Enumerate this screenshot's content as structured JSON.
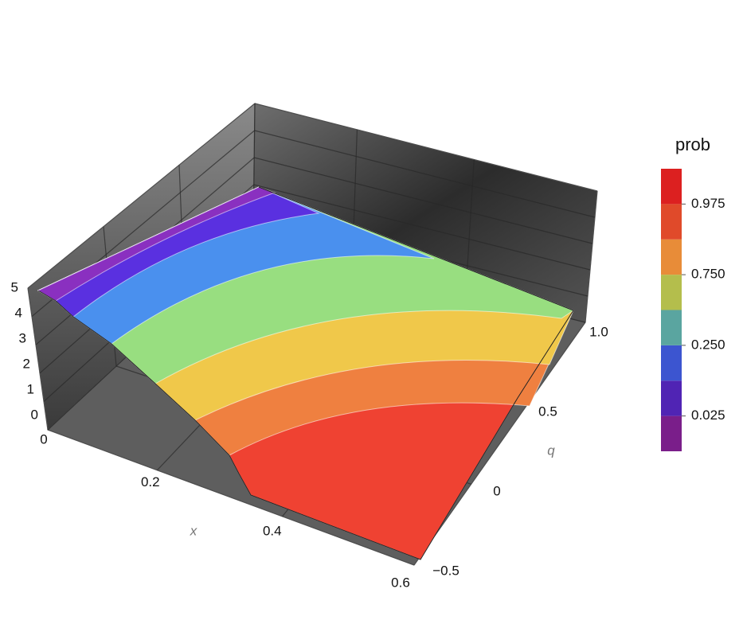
{
  "chart_data": {
    "type": "surface",
    "x_label": "x",
    "y_label": "q",
    "xlim": [
      0,
      0.6
    ],
    "xticks": [
      0,
      0.2,
      0.4,
      0.6
    ],
    "ylim": [
      -0.5,
      1
    ],
    "yticks": [
      {
        "value": -0.5,
        "label": "−0.5"
      },
      0,
      0.5,
      {
        "value": 1,
        "label": "1.0"
      }
    ],
    "zlim": [
      0,
      5
    ],
    "zticks": [
      0,
      1,
      2,
      3,
      4,
      5
    ],
    "colorbar": {
      "title": "prob",
      "colors": [
        "#7a1e8a",
        "#5024b4",
        "#3c55d0",
        "#5aa5a0",
        "#b4be4c",
        "#e88c38",
        "#e04a2a",
        "#dc2020"
      ],
      "ticks": [
        0.025,
        {
          "value": 0.25,
          "label": "0.250"
        },
        {
          "value": 0.75,
          "label": "0.750"
        },
        0.975
      ]
    }
  }
}
